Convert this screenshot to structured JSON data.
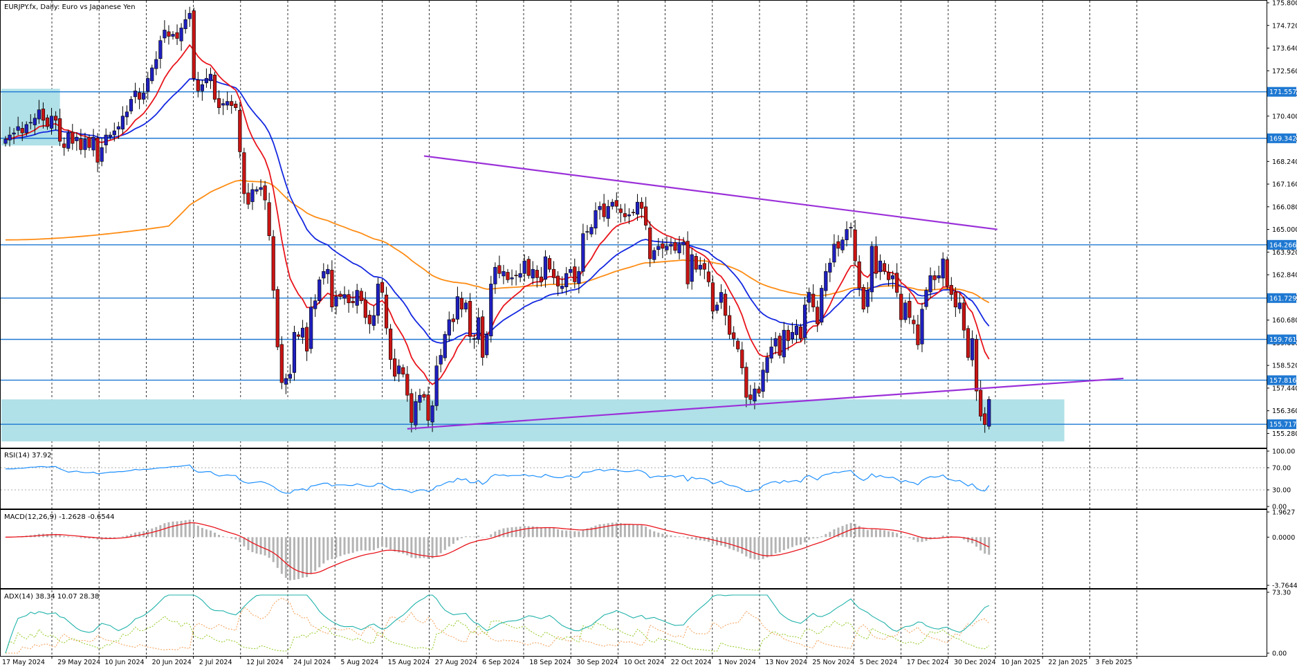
{
  "window_title": "EURJPY.fx, Daily:  Euro vs Japanese Yen",
  "colors": {
    "bull": "#1f1fbf",
    "bear": "#c81414",
    "level": "#1e78d2",
    "zone": "#b0e0e8",
    "ma_fast": "#e8141b",
    "ma_mid": "#1428e0",
    "ma_slow": "#ff8c14",
    "trend": "#9b30d9",
    "rsi": "#1e90ff",
    "macd_signal": "#e8141b",
    "macd_hist": "#b4b4b4",
    "adx": "#20b2aa",
    "plus_di": "#9acd32",
    "minus_di": "#f4a460"
  },
  "chart_data": {
    "type": "candlestick",
    "title": "EURJPY.fx, Daily:  Euro vs Japanese Yen",
    "y_range": [
      154.7,
      175.8
    ],
    "y_ticks": [
      "175.800",
      "174.720",
      "173.640",
      "172.560",
      "171.480",
      "170.400",
      "169.320",
      "168.240",
      "167.160",
      "166.080",
      "165.000",
      "163.920",
      "162.840",
      "161.760",
      "160.680",
      "159.600",
      "158.520",
      "157.440",
      "156.360",
      "155.280"
    ],
    "x_labels": [
      "17 May 2024",
      "29 May 2024",
      "10 Jun 2024",
      "20 Jun 2024",
      "2 Jul 2024",
      "12 Jul 2024",
      "24 Jul 2024",
      "5 Aug 2024",
      "15 Aug 2024",
      "27 Aug 2024",
      "6 Sep 2024",
      "18 Sep 2024",
      "30 Sep 2024",
      "10 Oct 2024",
      "22 Oct 2024",
      "1 Nov 2024",
      "13 Nov 2024",
      "25 Nov 2024",
      "5 Dec 2024",
      "17 Dec 2024",
      "30 Dec 2024",
      "10 Jan 2025",
      "22 Jan 2025",
      "3 Feb 2025"
    ],
    "close": [
      169.3,
      169.5,
      169.6,
      169.9,
      169.6,
      170.0,
      170.1,
      170.3,
      170.7,
      170.2,
      169.9,
      170.4,
      170.2,
      169.2,
      168.9,
      169.6,
      169.1,
      169.4,
      168.8,
      169.3,
      168.9,
      169.4,
      168.2,
      168.9,
      169.5,
      169.5,
      169.7,
      169.9,
      170.4,
      170.6,
      171.2,
      171.6,
      171.2,
      171.5,
      172.2,
      172.7,
      173.1,
      174.0,
      174.5,
      174.2,
      174.3,
      174.1,
      174.6,
      175.0,
      175.3,
      172.2,
      171.6,
      171.9,
      172.2,
      172.4,
      171.2,
      170.8,
      171.0,
      171.1,
      170.9,
      170.8,
      168.7,
      166.7,
      166.2,
      166.9,
      166.9,
      167.0,
      166.4,
      164.7,
      162.1,
      159.4,
      157.7,
      157.9,
      158.1,
      160.1,
      159.9,
      160.3,
      159.2,
      161.3,
      161.6,
      162.6,
      163.0,
      163.1,
      161.3,
      161.8,
      161.8,
      161.9,
      161.5,
      161.5,
      162.1,
      161.6,
      160.8,
      160.5,
      160.9,
      162.4,
      162.0,
      160.3,
      158.8,
      158.0,
      158.5,
      158.1,
      157.1,
      155.8,
      156.8,
      157.1,
      157.0,
      155.9,
      156.6,
      158.5,
      159.0,
      160.0,
      160.7,
      160.6,
      161.8,
      161.2,
      161.5,
      159.9,
      159.8,
      160.8,
      158.9,
      160.0,
      162.4,
      163.2,
      162.9,
      163.0,
      162.6,
      162.7,
      162.8,
      162.9,
      163.5,
      162.8,
      163.1,
      162.7,
      162.5,
      163.7,
      163.1,
      162.7,
      162.3,
      162.3,
      162.9,
      163.1,
      162.5,
      163.0,
      164.8,
      164.9,
      165.1,
      165.9,
      166.1,
      165.6,
      166.1,
      166.3,
      166.1,
      165.8,
      165.6,
      165.7,
      165.8,
      166.3,
      166.0,
      165.2,
      163.6,
      164.0,
      164.2,
      164.1,
      164.2,
      164.3,
      164.0,
      164.3,
      164.4,
      162.4,
      163.8,
      163.1,
      163.3,
      163.1,
      162.5,
      161.1,
      161.4,
      162.0,
      160.9,
      160.0,
      159.8,
      159.3,
      158.4,
      157.0,
      156.9,
      157.4,
      157.2,
      158.3,
      158.9,
      159.4,
      159.8,
      159.0,
      160.2,
      159.7,
      160.1,
      160.4,
      159.8,
      161.4,
      162.0,
      161.3,
      160.5,
      162.2,
      163.0,
      163.4,
      164.3,
      164.1,
      164.5,
      165.0,
      165.1,
      163.5,
      162.2,
      161.2,
      162.1,
      164.2,
      162.9,
      163.5,
      163.0,
      162.6,
      162.8,
      162.0,
      160.7,
      161.5,
      160.8,
      160.5,
      159.5,
      161.2,
      162.1,
      162.8,
      162.6,
      162.8,
      163.6,
      162.3,
      161.9,
      161.3,
      161.5,
      160.2,
      158.9,
      159.8,
      157.3,
      156.1,
      155.7,
      156.9
    ]
  },
  "price_levels": [
    {
      "value": 171.557,
      "label": "171.557"
    },
    {
      "value": 169.342,
      "label": "169.342"
    },
    {
      "value": 164.266,
      "label": "164.266"
    },
    {
      "value": 161.729,
      "label": "161.729"
    },
    {
      "value": 159.761,
      "label": "159.761"
    },
    {
      "value": 157.816,
      "label": "157.816"
    },
    {
      "value": 155.717,
      "label": "155.717"
    }
  ],
  "zones": [
    {
      "from_index": 0,
      "to_index": 13,
      "low": 169.0,
      "high": 171.7
    },
    {
      "from_index": 0,
      "to_index": 253,
      "low": 154.9,
      "high": 156.9
    }
  ],
  "trendlines": [
    {
      "from": [
        100,
        168.5
      ],
      "to": [
        237,
        165.0
      ],
      "to2": [
        237,
        164.3
      ]
    },
    {
      "from": [
        96,
        155.5
      ],
      "to": [
        263,
        157.9
      ]
    }
  ],
  "rsi": {
    "label": "RSI(14) 37.92",
    "range": [
      0,
      100
    ],
    "ticks": [
      "100.00",
      "70.00",
      "30.00",
      "0.00"
    ],
    "levels": [
      70,
      30
    ],
    "values": [
      68,
      68,
      68,
      69,
      69,
      70,
      71,
      71,
      72,
      72,
      71,
      72,
      72,
      68,
      65,
      62,
      63,
      64,
      62,
      61,
      61,
      62,
      59,
      60,
      61,
      62,
      62,
      63,
      63,
      64,
      65,
      67,
      66,
      67,
      67,
      68,
      69,
      70,
      70,
      71,
      72,
      72,
      73,
      74,
      75,
      66,
      62,
      62,
      63,
      63,
      58,
      55,
      56,
      57,
      56,
      56,
      48,
      44,
      42,
      43,
      44,
      45,
      43,
      40,
      36,
      30,
      26,
      24,
      24,
      30,
      30,
      32,
      29,
      37,
      38,
      40,
      42,
      42,
      37,
      39,
      39,
      39,
      38,
      38,
      41,
      39,
      37,
      36,
      37,
      42,
      41,
      36,
      32,
      30,
      31,
      30,
      28,
      25,
      28,
      30,
      30,
      27,
      30,
      37,
      38,
      42,
      45,
      44,
      51,
      48,
      50,
      43,
      43,
      47,
      40,
      45,
      54,
      58,
      56,
      57,
      55,
      56,
      56,
      56,
      58,
      55,
      56,
      54,
      53,
      58,
      55,
      53,
      52,
      52,
      55,
      55,
      52,
      54,
      62,
      62,
      63,
      66,
      67,
      64,
      66,
      67,
      66,
      64,
      63,
      63,
      64,
      66,
      64,
      60,
      52,
      54,
      55,
      54,
      55,
      56,
      53,
      55,
      56,
      46,
      53,
      50,
      51,
      50,
      47,
      41,
      43,
      46,
      41,
      38,
      37,
      35,
      31,
      27,
      27,
      30,
      30,
      38,
      41,
      44,
      45,
      42,
      47,
      44,
      46,
      47,
      44,
      53,
      56,
      52,
      48,
      55,
      58,
      59,
      62,
      61,
      63,
      64,
      65,
      57,
      51,
      47,
      51,
      59,
      53,
      56,
      53,
      52,
      53,
      49,
      44,
      47,
      44,
      43,
      39,
      47,
      51,
      54,
      53,
      54,
      57,
      50,
      48,
      46,
      47,
      42,
      37,
      41,
      33,
      29,
      28,
      38
    ]
  },
  "macd": {
    "label": "MACD(12,26,9) -1.2628 -0.6544",
    "ticks": [
      "1.9627",
      "0.0000",
      "-3.7644"
    ],
    "range": [
      -3.7644,
      1.9627
    ]
  },
  "adx": {
    "label": "ADX(14) 38.34 10.07 28.38",
    "ticks": [
      "73.30",
      "0.00"
    ],
    "range": [
      0,
      73.3
    ]
  }
}
